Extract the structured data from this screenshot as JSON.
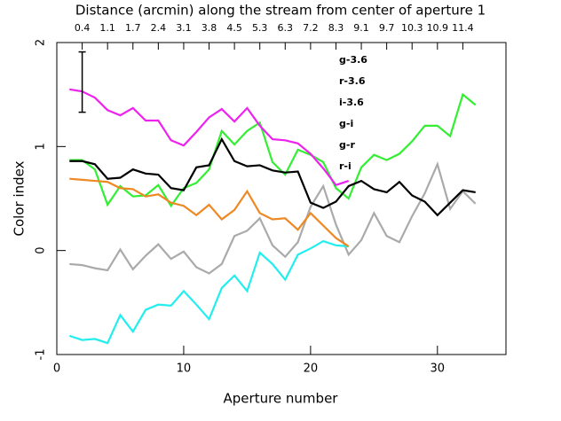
{
  "chart_data": {
    "type": "line",
    "x2_label": "Distance (arcmin) along the stream from center of aperture 1",
    "xlabel": "Aperture number",
    "ylabel": "Color index",
    "x": [
      1,
      2,
      3,
      4,
      5,
      6,
      7,
      8,
      9,
      10,
      11,
      12,
      13,
      14,
      15,
      16,
      17,
      18,
      19,
      20,
      21,
      22,
      23,
      24,
      25,
      26,
      27,
      28,
      29,
      30,
      31,
      32,
      33
    ],
    "series": [
      {
        "name": "g-3.6",
        "color": "#33ee33",
        "values": [
          0.87,
          0.87,
          0.78,
          0.44,
          0.62,
          0.52,
          0.53,
          0.63,
          0.43,
          0.6,
          0.65,
          0.78,
          1.15,
          1.02,
          1.15,
          1.23,
          0.85,
          0.73,
          0.97,
          0.92,
          0.85,
          0.6,
          0.5,
          0.8,
          0.92,
          0.87,
          0.93,
          1.05,
          1.2,
          1.2,
          1.1,
          1.5,
          1.4
        ]
      },
      {
        "name": "r-3.6",
        "color": "#aaaaaa",
        "values": [
          -0.13,
          -0.14,
          -0.17,
          -0.19,
          0.01,
          -0.18,
          -0.05,
          0.06,
          -0.08,
          -0.01,
          -0.16,
          -0.22,
          -0.13,
          0.14,
          0.19,
          0.31,
          0.05,
          -0.06,
          0.08,
          0.42,
          0.62,
          0.25,
          -0.04,
          0.1,
          0.36,
          0.14,
          0.08,
          0.33,
          0.55,
          0.83,
          0.4,
          0.57,
          0.45
        ]
      },
      {
        "name": "i-3.6",
        "color": "#22eeee",
        "values": [
          -0.82,
          -0.86,
          -0.85,
          -0.89,
          -0.62,
          -0.78,
          -0.57,
          -0.52,
          -0.53,
          -0.39,
          -0.52,
          -0.66,
          -0.36,
          -0.24,
          -0.39,
          -0.02,
          -0.13,
          -0.28,
          -0.04,
          0.02,
          0.09,
          0.05,
          0.04,
          null,
          null,
          null,
          null,
          null,
          null,
          null,
          null,
          null,
          null
        ]
      },
      {
        "name": "g-i",
        "color": "#ee22ee",
        "values": [
          1.55,
          1.53,
          1.47,
          1.35,
          1.3,
          1.37,
          1.25,
          1.25,
          1.06,
          1.01,
          1.14,
          1.28,
          1.36,
          1.24,
          1.37,
          1.2,
          1.07,
          1.06,
          1.03,
          0.93,
          0.79,
          0.63,
          0.67,
          null,
          null,
          null,
          null,
          null,
          null,
          null,
          null,
          null,
          null
        ]
      },
      {
        "name": "g-r",
        "color": "#000000",
        "values": [
          0.86,
          0.86,
          0.83,
          0.69,
          0.7,
          0.78,
          0.74,
          0.73,
          0.6,
          0.58,
          0.8,
          0.82,
          1.07,
          0.86,
          0.81,
          0.82,
          0.77,
          0.75,
          0.76,
          0.46,
          0.41,
          0.47,
          0.62,
          0.67,
          0.59,
          0.56,
          0.66,
          0.53,
          0.47,
          0.34,
          0.46,
          0.58,
          0.56
        ]
      },
      {
        "name": "r-i",
        "color": "#ee8822",
        "values": [
          0.69,
          0.68,
          0.67,
          0.66,
          0.6,
          0.59,
          0.52,
          0.54,
          0.46,
          0.43,
          0.34,
          0.44,
          0.3,
          0.39,
          0.57,
          0.36,
          0.3,
          0.31,
          0.2,
          0.36,
          0.24,
          0.12,
          0.04,
          null,
          null,
          null,
          null,
          null,
          null,
          null,
          null,
          null,
          null
        ]
      }
    ],
    "error_bar": {
      "x": 2,
      "low": 1.33,
      "high": 1.91
    },
    "xlim": [
      0,
      35.4
    ],
    "ylim": [
      -1,
      2
    ],
    "xticks": [
      0,
      10,
      20,
      30
    ],
    "yticks": [
      -1,
      0,
      1,
      2
    ],
    "x2ticks": [
      {
        "value": 2,
        "label": "0.4"
      },
      {
        "value": 4,
        "label": "1.1"
      },
      {
        "value": 6,
        "label": "1.7"
      },
      {
        "value": 8,
        "label": "2.4"
      },
      {
        "value": 10,
        "label": "3.1"
      },
      {
        "value": 12,
        "label": "3.8"
      },
      {
        "value": 14,
        "label": "4.5"
      },
      {
        "value": 16,
        "label": "5.3"
      },
      {
        "value": 18,
        "label": "6.3"
      },
      {
        "value": 20,
        "label": "7.2"
      },
      {
        "value": 22,
        "label": "8.3"
      },
      {
        "value": 24,
        "label": "9.1"
      },
      {
        "value": 26,
        "label": "9.7"
      },
      {
        "value": 28,
        "label": "10.3"
      },
      {
        "value": 30,
        "label": "10.9"
      },
      {
        "value": 32,
        "label": "11.4"
      }
    ]
  }
}
